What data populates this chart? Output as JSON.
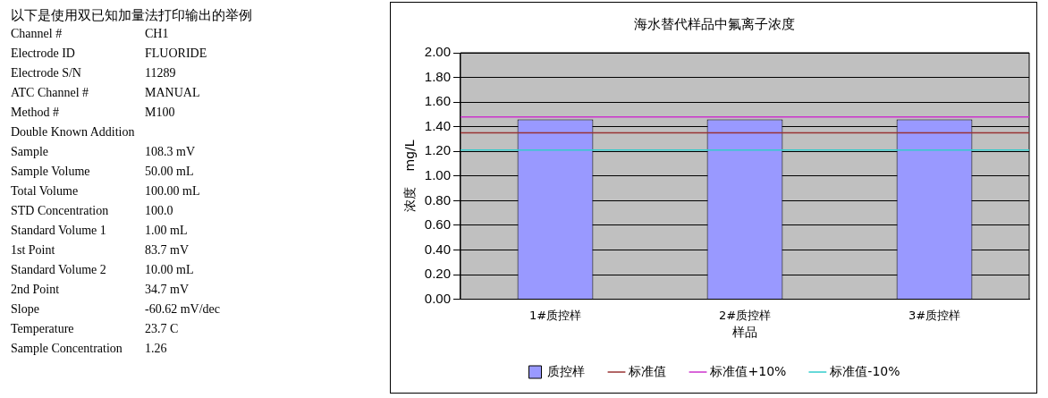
{
  "chart_data": [
    {
      "type": "other",
      "title": "以下是使用双已知加量法打印输出的举例",
      "categories": [
        "Channel #",
        "Electrode ID",
        "Electrode S/N",
        "ATC Channel #",
        "Method #",
        "Double Known Addition",
        "Sample",
        "Sample Volume",
        "Total Volume",
        "STD Concentration",
        "Standard Volume 1",
        "1st Point",
        "Standard Volume 2",
        "2nd Point",
        "Slope",
        "Temperature",
        "Sample Concentration"
      ],
      "value_labels": [
        "CH1",
        "FLUORIDE",
        "11289",
        "MANUAL",
        "M100",
        null,
        "108.3 mV",
        "50.00 mL",
        "100.00 mL",
        "100.0",
        "1.00 mL",
        "83.7 mV",
        "10.00 mL",
        "34.7 mV",
        "-60.62 mV/dec",
        "23.7 C",
        "1.26"
      ]
    },
    {
      "type": "bar",
      "title": "海水替代样品中氟离子浓度",
      "xlabel": "样品",
      "ylabel": "浓度    mg/L",
      "categories": [
        "1#质控样",
        "2#质控样",
        "3#质控样"
      ],
      "series": [
        {
          "name": "质控样",
          "type": "bar",
          "color": "#9999ff",
          "values": [
            1.46,
            1.46,
            1.46
          ]
        }
      ],
      "ref_lines": [
        {
          "axis": "y",
          "value": 1.35,
          "label": "标准值",
          "color": "#993333"
        },
        {
          "axis": "y",
          "value": 1.48,
          "label": "标准值+10%",
          "color": "#cc33cc"
        },
        {
          "axis": "y",
          "value": 1.21,
          "label": "标准值-10%",
          "color": "#33cccc"
        }
      ],
      "ylim": [
        0,
        2
      ],
      "yticks": [
        {
          "value": 0,
          "label": "0.00"
        },
        {
          "value": 0.2,
          "label": "0.20"
        },
        {
          "value": 0.4,
          "label": "0.40"
        },
        {
          "value": 0.6,
          "label": "0.60"
        },
        {
          "value": 0.8,
          "label": "0.80"
        },
        {
          "value": 1,
          "label": "1.00"
        },
        {
          "value": 1.2,
          "label": "1.20"
        },
        {
          "value": 1.4,
          "label": "1.40"
        },
        {
          "value": 1.6,
          "label": "1.60"
        },
        {
          "value": 1.8,
          "label": "1.80"
        },
        {
          "value": 2,
          "label": "2.00"
        }
      ],
      "grid": "y",
      "legend": "bottom"
    }
  ]
}
